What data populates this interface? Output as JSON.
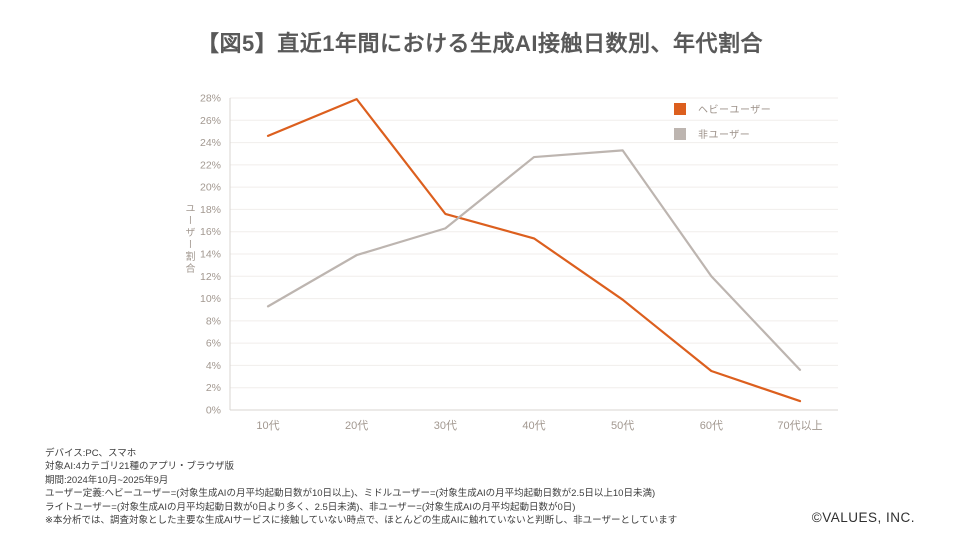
{
  "title": "【図5】直近1年間における生成AI接触日数別、年代割合",
  "chart_data": {
    "type": "line",
    "title": "【図5】直近1年間における生成AI接触日数別、年代割合",
    "categories": [
      "10代",
      "20代",
      "30代",
      "40代",
      "50代",
      "60代",
      "70代以上"
    ],
    "series": [
      {
        "name": "ヘビーユーザー",
        "color": "#dc5f1e",
        "values": [
          24.6,
          27.9,
          17.6,
          15.4,
          9.9,
          3.5,
          0.8
        ]
      },
      {
        "name": "非ユーザー",
        "color": "#bdb5b0",
        "values": [
          9.3,
          13.9,
          16.3,
          22.7,
          23.3,
          12.0,
          3.6
        ]
      }
    ],
    "xlabel": "",
    "ylabel": "ユーザー割合",
    "ylim": [
      0,
      28
    ],
    "ytick_step": 2,
    "ytick_suffix": "%",
    "grid": true,
    "legend_position": "top-right",
    "colors": {
      "grid_line": "#f1eeeb",
      "axis_line": "#d9d5d1",
      "tick_label": "#a29890"
    }
  },
  "footer": {
    "lines": [
      "デバイス:PC、スマホ",
      "対象AI:4カテゴリ21種のアプリ・ブラウザ版",
      "期間:2024年10月~2025年9月",
      "ユーザー定義:ヘビーユーザー=(対象生成AIの月平均起動日数が10日以上)、ミドルユーザー=(対象生成AIの月平均起動日数が2.5日以上10日未満)",
      "ライトユーザー=(対象生成AIの月平均起動日数が0日より多く、2.5日未満)、非ユーザー=(対象生成AIの月平均起動日数が0日)",
      "※本分析では、調査対象とした主要な生成AIサービスに接触していない時点で、ほとんどの生成AIに触れていないと判断し、非ユーザーとしています"
    ]
  },
  "copyright": "©VALUES, INC."
}
